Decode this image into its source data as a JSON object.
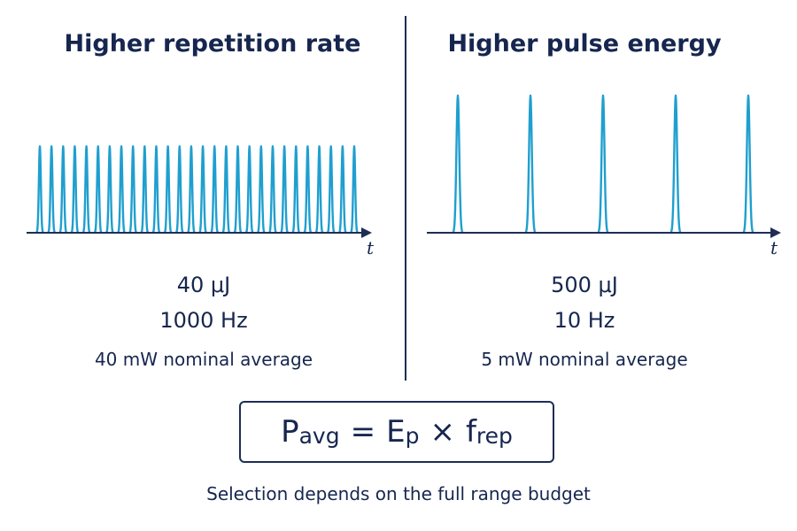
{
  "left_panel": {
    "title": "Higher repetition rate",
    "axis_label": "t",
    "pulse_energy": "40 μJ",
    "rep_rate": "1000 Hz",
    "average": "40 mW nominal average",
    "pulse_count": 28,
    "relative_peak": 0.63
  },
  "right_panel": {
    "title": "Higher pulse energy",
    "axis_label": "t",
    "pulse_energy": "500 μJ",
    "rep_rate": "10 Hz",
    "average": "5 mW nominal average",
    "pulse_count": 5,
    "relative_peak": 1.0
  },
  "formula": {
    "p_main": "P",
    "p_sub": "avg",
    "equals": "=",
    "e_main": "E",
    "e_sub": "p",
    "times": "×",
    "f_main": "f",
    "f_sub": "rep"
  },
  "caption": "Selection depends on the full range budget",
  "colors": {
    "pulse": "#1f9fcf",
    "axis": "#1f2d55",
    "text": "#16264f"
  }
}
